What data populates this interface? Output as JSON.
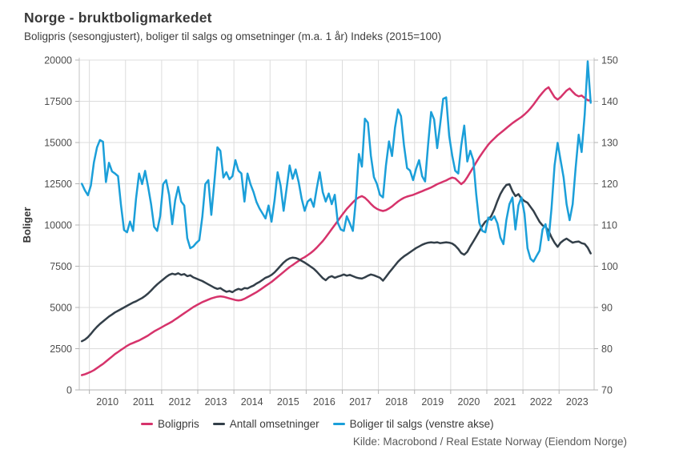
{
  "header": {
    "title": "Norge - bruktboligmarkedet",
    "subtitle": "Boligpris (sesongjustert), boliger til salgs og omsetninger (m.a. 1 år) Indeks (2015=100)"
  },
  "source": "Kilde: Macrobond / Real Estate Norway (Eiendom Norge)",
  "chart_data": {
    "type": "line",
    "title": "Norge - bruktboligmarkedet",
    "subtitle": "Boligpris (sesongjustert), boliger til salgs og omsetninger (m.a. 1 år) Indeks (2015=100)",
    "grid": true,
    "legend_position": "bottom",
    "left_axis": {
      "label": "Boliger",
      "range": [
        0,
        20000
      ],
      "ticks": [
        0,
        2500,
        5000,
        7500,
        10000,
        12500,
        15000,
        17500,
        20000
      ]
    },
    "right_axis": {
      "label": "Indeks (2015=100)",
      "range": [
        70,
        150
      ],
      "ticks": [
        70,
        80,
        90,
        100,
        110,
        120,
        130,
        140,
        150
      ]
    },
    "x_axis": {
      "range": [
        2009.72,
        2023.97
      ],
      "year_labels": [
        2010,
        2011,
        2012,
        2013,
        2014,
        2015,
        2016,
        2017,
        2018,
        2019,
        2020,
        2021,
        2022,
        2023
      ],
      "gridline_years": [
        2010,
        2011,
        2012,
        2013,
        2014,
        2015,
        2016,
        2017,
        2018,
        2019,
        2020,
        2021,
        2022,
        2023
      ]
    },
    "x_start": 2009.792,
    "x_step": 0.0833333,
    "series": [
      {
        "name": "Boligpris",
        "axis": "right",
        "color": "#d6336b",
        "values": [
          73.6,
          73.8,
          74.1,
          74.4,
          74.8,
          75.3,
          75.8,
          76.3,
          76.9,
          77.5,
          78.1,
          78.7,
          79.2,
          79.7,
          80.2,
          80.7,
          81.1,
          81.4,
          81.7,
          82.0,
          82.4,
          82.8,
          83.2,
          83.7,
          84.2,
          84.6,
          85.0,
          85.4,
          85.8,
          86.2,
          86.6,
          87.1,
          87.6,
          88.1,
          88.6,
          89.1,
          89.6,
          90.1,
          90.5,
          90.9,
          91.3,
          91.6,
          91.9,
          92.2,
          92.4,
          92.6,
          92.7,
          92.6,
          92.4,
          92.2,
          92.0,
          91.8,
          91.7,
          91.8,
          92.1,
          92.5,
          92.9,
          93.3,
          93.7,
          94.2,
          94.7,
          95.2,
          95.7,
          96.2,
          96.8,
          97.4,
          98.0,
          98.6,
          99.2,
          99.8,
          100.3,
          100.8,
          101.3,
          101.8,
          102.2,
          102.7,
          103.2,
          103.8,
          104.5,
          105.3,
          106.1,
          107.0,
          108.0,
          109.0,
          110.0,
          111.0,
          112.0,
          113.0,
          113.9,
          114.7,
          115.5,
          116.2,
          116.7,
          117.0,
          116.6,
          115.9,
          115.1,
          114.4,
          113.9,
          113.6,
          113.4,
          113.6,
          114.0,
          114.5,
          115.1,
          115.7,
          116.2,
          116.6,
          116.9,
          117.1,
          117.3,
          117.6,
          117.9,
          118.2,
          118.5,
          118.8,
          119.1,
          119.5,
          119.9,
          120.2,
          120.5,
          120.8,
          121.2,
          121.5,
          121.3,
          120.6,
          119.9,
          120.5,
          121.6,
          122.8,
          124.0,
          125.2,
          126.4,
          127.5,
          128.5,
          129.5,
          130.3,
          131.0,
          131.7,
          132.3,
          132.9,
          133.5,
          134.1,
          134.7,
          135.2,
          135.7,
          136.2,
          136.8,
          137.5,
          138.3,
          139.2,
          140.2,
          141.2,
          142.1,
          142.9,
          143.4,
          142.2,
          141.0,
          140.4,
          141.0,
          141.8,
          142.6,
          143.1,
          142.3,
          141.6,
          141.2,
          141.4,
          140.8,
          140.3,
          140.1
        ]
      },
      {
        "name": "Antall omsetninger",
        "axis": "right",
        "color": "#333f49",
        "values": [
          81.8,
          82.2,
          82.8,
          83.6,
          84.5,
          85.3,
          86.0,
          86.6,
          87.2,
          87.8,
          88.3,
          88.8,
          89.2,
          89.6,
          90.0,
          90.4,
          90.8,
          91.2,
          91.5,
          91.9,
          92.3,
          92.8,
          93.4,
          94.1,
          94.9,
          95.6,
          96.2,
          96.8,
          97.4,
          97.9,
          98.2,
          98.0,
          98.3,
          97.9,
          98.1,
          97.6,
          97.8,
          97.3,
          97.0,
          96.7,
          96.4,
          96.0,
          95.6,
          95.2,
          94.8,
          94.5,
          94.7,
          94.2,
          93.8,
          94.0,
          93.7,
          94.2,
          94.5,
          94.3,
          94.7,
          94.6,
          95.0,
          95.3,
          95.8,
          96.2,
          96.7,
          97.2,
          97.5,
          97.9,
          98.5,
          99.3,
          100.1,
          100.9,
          101.5,
          101.9,
          102.1,
          102.0,
          101.7,
          101.3,
          100.9,
          100.4,
          99.9,
          99.4,
          98.7,
          97.9,
          97.1,
          96.6,
          97.3,
          97.6,
          97.2,
          97.5,
          97.7,
          98.0,
          97.7,
          97.9,
          97.6,
          97.3,
          97.1,
          97.0,
          97.3,
          97.7,
          98.0,
          97.8,
          97.5,
          97.2,
          96.5,
          97.4,
          98.4,
          99.3,
          100.2,
          101.1,
          101.8,
          102.4,
          102.9,
          103.4,
          103.9,
          104.4,
          104.8,
          105.2,
          105.5,
          105.7,
          105.8,
          105.7,
          105.8,
          105.6,
          105.7,
          105.8,
          105.7,
          105.5,
          105.0,
          104.2,
          103.2,
          102.8,
          103.5,
          104.8,
          106.0,
          107.2,
          108.5,
          109.8,
          110.8,
          111.3,
          112.2,
          113.8,
          115.8,
          117.5,
          118.8,
          119.7,
          119.9,
          118.2,
          117.0,
          117.5,
          116.4,
          115.8,
          115.4,
          114.4,
          113.4,
          112.1,
          110.8,
          109.9,
          109.6,
          108.6,
          107.0,
          105.7,
          104.7,
          105.7,
          106.3,
          106.7,
          106.2,
          105.7,
          105.9,
          106.0,
          105.6,
          105.4,
          104.5,
          103.1
        ]
      },
      {
        "name": "Boliger til salgs (venstre akse)",
        "axis": "left",
        "color": "#1b9fd9",
        "values": [
          12500,
          12100,
          11800,
          12400,
          13800,
          14700,
          15150,
          15050,
          12600,
          13770,
          13250,
          13120,
          12960,
          11200,
          9700,
          9560,
          10210,
          9640,
          11600,
          13120,
          12480,
          13280,
          12310,
          11260,
          9890,
          9640,
          10530,
          12480,
          12720,
          11800,
          10050,
          11500,
          12310,
          11420,
          11180,
          9200,
          8590,
          8700,
          8915,
          9080,
          10500,
          12480,
          12720,
          10610,
          12600,
          14710,
          14500,
          12880,
          13200,
          12770,
          12960,
          13930,
          13290,
          13120,
          11420,
          13120,
          12480,
          12000,
          11400,
          11000,
          10700,
          10400,
          11180,
          10200,
          11500,
          13200,
          12400,
          10860,
          12200,
          13610,
          12800,
          13370,
          12600,
          11600,
          10860,
          11420,
          11580,
          11100,
          12200,
          13200,
          11990,
          11420,
          11910,
          11260,
          11830,
          10130,
          9730,
          9640,
          10530,
          10100,
          9640,
          11500,
          14300,
          13540,
          16440,
          16200,
          14200,
          12900,
          12480,
          11830,
          11670,
          13600,
          15070,
          14180,
          15900,
          17010,
          16600,
          14800,
          13450,
          13300,
          12720,
          13400,
          13930,
          12960,
          12640,
          14900,
          16850,
          16400,
          14660,
          16100,
          17650,
          17740,
          15400,
          14200,
          13290,
          13120,
          14800,
          16030,
          13850,
          14500,
          13930,
          11830,
          10130,
          9640,
          9560,
          10450,
          10300,
          10530,
          10100,
          9240,
          8840,
          10300,
          11260,
          11670,
          9730,
          11200,
          11670,
          10690,
          8590,
          7950,
          7780,
          8110,
          8430,
          9730,
          10050,
          9080,
          11020,
          13610,
          14980,
          13930,
          12880,
          11260,
          10290,
          11260,
          13450,
          15470,
          14420,
          16680,
          19920,
          17410
        ]
      }
    ]
  }
}
